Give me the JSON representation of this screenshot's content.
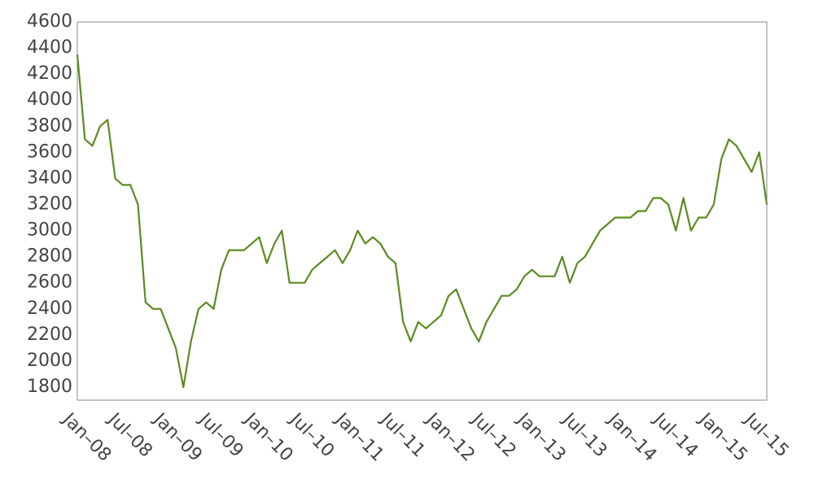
{
  "chart_data": {
    "type": "line",
    "color": "#5b8c1f",
    "x": [
      "2008-01",
      "2008-02",
      "2008-03",
      "2008-04",
      "2008-05",
      "2008-06",
      "2008-07",
      "2008-08",
      "2008-09",
      "2008-10",
      "2008-11",
      "2008-12",
      "2009-01",
      "2009-02",
      "2009-03",
      "2009-04",
      "2009-05",
      "2009-06",
      "2009-07",
      "2009-08",
      "2009-09",
      "2009-10",
      "2009-11",
      "2009-12",
      "2010-01",
      "2010-02",
      "2010-03",
      "2010-04",
      "2010-05",
      "2010-06",
      "2010-07",
      "2010-08",
      "2010-09",
      "2010-10",
      "2010-11",
      "2010-12",
      "2011-01",
      "2011-02",
      "2011-03",
      "2011-04",
      "2011-05",
      "2011-06",
      "2011-07",
      "2011-08",
      "2011-09",
      "2011-10",
      "2011-11",
      "2011-12",
      "2012-01",
      "2012-02",
      "2012-03",
      "2012-04",
      "2012-05",
      "2012-06",
      "2012-07",
      "2012-08",
      "2012-09",
      "2012-10",
      "2012-11",
      "2012-12",
      "2013-01",
      "2013-02",
      "2013-03",
      "2013-04",
      "2013-05",
      "2013-06",
      "2013-07",
      "2013-08",
      "2013-09",
      "2013-10",
      "2013-11",
      "2013-12",
      "2014-01",
      "2014-02",
      "2014-03",
      "2014-04",
      "2014-05",
      "2014-06",
      "2014-07",
      "2014-08",
      "2014-09",
      "2014-10",
      "2014-11",
      "2014-12",
      "2015-01",
      "2015-02",
      "2015-03",
      "2015-04",
      "2015-05",
      "2015-06",
      "2015-07",
      "2015-08"
    ],
    "values": [
      4350,
      3700,
      3650,
      3800,
      3850,
      3400,
      3350,
      3350,
      3200,
      2450,
      2400,
      2400,
      2250,
      2100,
      1800,
      2150,
      2400,
      2450,
      2400,
      2700,
      2850,
      2850,
      2850,
      2900,
      2950,
      2750,
      2900,
      3000,
      2600,
      2600,
      2600,
      2700,
      2750,
      2800,
      2850,
      2750,
      2850,
      3000,
      2900,
      2950,
      2900,
      2800,
      2750,
      2300,
      2150,
      2300,
      2250,
      2300,
      2350,
      2500,
      2550,
      2400,
      2250,
      2150,
      2300,
      2400,
      2500,
      2500,
      2550,
      2650,
      2700,
      2650,
      2650,
      2650,
      2800,
      2600,
      2750,
      2800,
      2900,
      3000,
      3050,
      3100,
      3100,
      3100,
      3150,
      3150,
      3250,
      3250,
      3200,
      3000,
      3250,
      3000,
      3100,
      3100,
      3200,
      3550,
      3700,
      3650,
      3550,
      3450,
      3600,
      3200
    ],
    "xlim": [
      "2008-01",
      "2015-08"
    ],
    "xticks": [
      {
        "value": "2008-01",
        "label": "Jan–08"
      },
      {
        "value": "2008-07",
        "label": "Jul–08"
      },
      {
        "value": "2009-01",
        "label": "Jan–09"
      },
      {
        "value": "2009-07",
        "label": "Jul–09"
      },
      {
        "value": "2010-01",
        "label": "Jan–10"
      },
      {
        "value": "2010-07",
        "label": "Jul–10"
      },
      {
        "value": "2011-01",
        "label": "Jan–11"
      },
      {
        "value": "2011-07",
        "label": "Jul–11"
      },
      {
        "value": "2012-01",
        "label": "Jan–12"
      },
      {
        "value": "2012-07",
        "label": "Jul–12"
      },
      {
        "value": "2013-01",
        "label": "Jan–13"
      },
      {
        "value": "2013-07",
        "label": "Jul–13"
      },
      {
        "value": "2014-01",
        "label": "Jan–14"
      },
      {
        "value": "2014-07",
        "label": "Jul–14"
      },
      {
        "value": "2015-01",
        "label": "Jan–15"
      },
      {
        "value": "2015-07",
        "label": "Jul–15"
      }
    ],
    "ylim": [
      1700,
      4600
    ],
    "yticks": [
      1800,
      2000,
      2200,
      2400,
      2600,
      2800,
      3000,
      3200,
      3400,
      3600,
      3800,
      4000,
      4200,
      4400,
      4600
    ]
  }
}
